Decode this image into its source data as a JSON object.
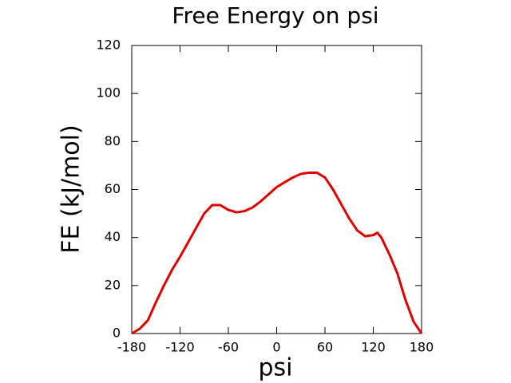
{
  "chart_data": {
    "type": "line",
    "title": "Free Energy on psi",
    "x_label": "psi",
    "y_label": "FE (kJ/mol)",
    "x": [
      -180,
      -170,
      -160,
      -150,
      -140,
      -130,
      -120,
      -110,
      -100,
      -90,
      -80,
      -70,
      -60,
      -50,
      -40,
      -30,
      -20,
      -10,
      0,
      10,
      20,
      30,
      40,
      50,
      60,
      70,
      80,
      90,
      100,
      110,
      120,
      125,
      130,
      140,
      150,
      160,
      170,
      180
    ],
    "series": [
      {
        "color": "#e00000",
        "values": [
          0,
          2,
          5.5,
          13,
          20,
          26.5,
          32,
          38,
          44,
          50,
          53.5,
          53.5,
          51.5,
          50.5,
          51,
          52.5,
          55,
          58,
          61,
          63,
          65,
          66.5,
          67,
          67,
          65,
          60,
          54,
          48,
          43,
          40.5,
          41,
          42,
          40,
          33,
          25,
          14,
          5,
          0
        ]
      }
    ],
    "xlim": [
      -180,
      180
    ],
    "xticks": [
      -180,
      -120,
      -60,
      0,
      60,
      120,
      180
    ],
    "ylim": [
      0,
      120
    ],
    "yticks": [
      0,
      20,
      40,
      60,
      80,
      100,
      120
    ]
  }
}
